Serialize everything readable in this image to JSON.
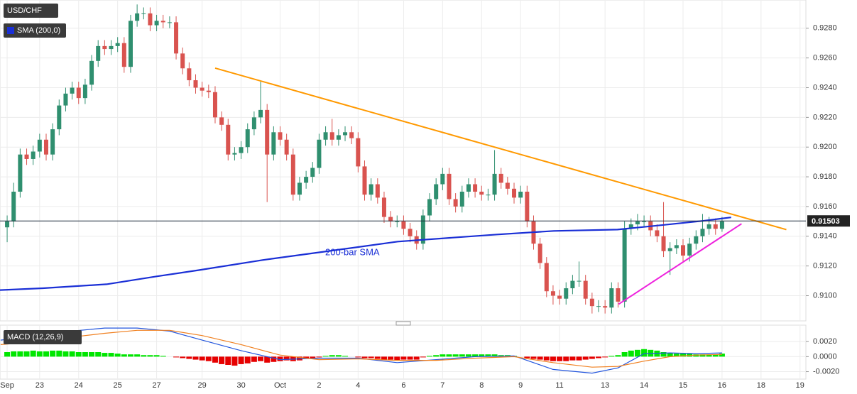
{
  "chart_data": [
    {
      "type": "candlestick",
      "title": "USD/CHF",
      "xlim": [
        -1.1,
        122.9
      ],
      "ylim": [
        0.9084,
        0.9299
      ],
      "xticks": [
        {
          "value": 0,
          "label": "Sep"
        },
        {
          "value": 5,
          "label": "23"
        },
        {
          "value": 11,
          "label": "24"
        },
        {
          "value": 17,
          "label": "25"
        },
        {
          "value": 23,
          "label": "27"
        },
        {
          "value": 30,
          "label": "29"
        },
        {
          "value": 36,
          "label": "30"
        },
        {
          "value": 42,
          "label": "Oct"
        },
        {
          "value": 48,
          "label": "2"
        },
        {
          "value": 54,
          "label": "4"
        },
        {
          "value": 61,
          "label": "6"
        },
        {
          "value": 67,
          "label": "7"
        },
        {
          "value": 73,
          "label": "8"
        },
        {
          "value": 79,
          "label": "9"
        },
        {
          "value": 85,
          "label": "11"
        },
        {
          "value": 92,
          "label": "13"
        },
        {
          "value": 98,
          "label": "14"
        },
        {
          "value": 104,
          "label": "15"
        },
        {
          "value": 110,
          "label": "16"
        },
        {
          "value": 116,
          "label": "18"
        },
        {
          "value": 122,
          "label": "19"
        }
      ],
      "yticks": [
        {
          "value": 0.91,
          "label": "0.9100"
        },
        {
          "value": 0.912,
          "label": "0.9120"
        },
        {
          "value": 0.914,
          "label": "0.9140"
        },
        {
          "value": 0.916,
          "label": "0.9160"
        },
        {
          "value": 0.918,
          "label": "0.9180"
        },
        {
          "value": 0.92,
          "label": "0.9200"
        },
        {
          "value": 0.922,
          "label": "0.9220"
        },
        {
          "value": 0.924,
          "label": "0.9240"
        },
        {
          "value": 0.926,
          "label": "0.9260"
        },
        {
          "value": 0.928,
          "label": "0.9280"
        }
      ],
      "grid": true,
      "up_color": "#2f8f6f",
      "down_color": "#d9534f",
      "x": [
        0,
        1,
        2,
        3,
        4,
        5,
        6,
        7,
        8,
        9,
        10,
        11,
        12,
        13,
        14,
        15,
        16,
        17,
        18,
        19,
        20,
        21,
        22,
        23,
        24,
        25,
        26,
        27,
        28,
        29,
        30,
        31,
        32,
        33,
        34,
        35,
        36,
        37,
        38,
        39,
        40,
        41,
        42,
        43,
        44,
        45,
        46,
        47,
        48,
        49,
        50,
        51,
        52,
        53,
        54,
        55,
        56,
        57,
        58,
        59,
        60,
        61,
        62,
        63,
        64,
        65,
        66,
        67,
        68,
        69,
        70,
        71,
        72,
        73,
        74,
        75,
        76,
        77,
        78,
        79,
        80,
        81,
        82,
        83,
        84,
        85,
        86,
        87,
        88,
        89,
        90,
        91,
        92,
        93,
        94,
        95,
        96,
        97,
        98,
        99,
        100,
        101,
        102,
        103,
        104,
        105,
        106,
        107,
        108,
        109,
        110
      ],
      "open": [
        0.9146,
        0.915,
        0.917,
        0.9195,
        0.9192,
        0.9197,
        0.9205,
        0.9195,
        0.9212,
        0.9228,
        0.9236,
        0.924,
        0.9233,
        0.9242,
        0.9258,
        0.9268,
        0.9266,
        0.9268,
        0.927,
        0.9254,
        0.9285,
        0.929,
        0.929,
        0.9282,
        0.9285,
        0.9284,
        0.9284,
        0.9263,
        0.9253,
        0.9245,
        0.924,
        0.9238,
        0.9237,
        0.922,
        0.9215,
        0.9195,
        0.9196,
        0.92,
        0.9212,
        0.922,
        0.9225,
        0.9195,
        0.921,
        0.9205,
        0.9195,
        0.9168,
        0.9176,
        0.918,
        0.9186,
        0.9205,
        0.921,
        0.9205,
        0.9208,
        0.921,
        0.9206,
        0.9187,
        0.9168,
        0.9175,
        0.9166,
        0.9153,
        0.915,
        0.915,
        0.9145,
        0.914,
        0.9135,
        0.9154,
        0.9165,
        0.9175,
        0.9182,
        0.9165,
        0.916,
        0.917,
        0.9175,
        0.917,
        0.9168,
        0.9168,
        0.9182,
        0.9176,
        0.9172,
        0.9166,
        0.917,
        0.915,
        0.9135,
        0.9122,
        0.9103,
        0.91,
        0.9098,
        0.9105,
        0.911,
        0.911,
        0.9098,
        0.9093,
        0.9093,
        0.9092,
        0.9105,
        0.9096,
        0.9145,
        0.9148,
        0.915,
        0.915,
        0.9144,
        0.914,
        0.913,
        0.9132,
        0.9134,
        0.9127,
        0.9135,
        0.914,
        0.9145,
        0.9148,
        0.9145
      ],
      "high": [
        0.9154,
        0.9176,
        0.9199,
        0.9199,
        0.9201,
        0.9209,
        0.9209,
        0.9216,
        0.9232,
        0.924,
        0.9244,
        0.9244,
        0.9246,
        0.9262,
        0.9272,
        0.9272,
        0.9272,
        0.9274,
        0.9274,
        0.9289,
        0.9296,
        0.9294,
        0.9294,
        0.9289,
        0.9289,
        0.9288,
        0.9288,
        0.9267,
        0.9257,
        0.9249,
        0.9244,
        0.9242,
        0.9241,
        0.9224,
        0.9219,
        0.92,
        0.9204,
        0.9216,
        0.9224,
        0.9244,
        0.9229,
        0.9214,
        0.9214,
        0.9209,
        0.9199,
        0.918,
        0.9184,
        0.919,
        0.9209,
        0.9214,
        0.9219,
        0.9212,
        0.9214,
        0.9214,
        0.921,
        0.9191,
        0.9179,
        0.9179,
        0.917,
        0.9157,
        0.9154,
        0.9154,
        0.9149,
        0.9144,
        0.9158,
        0.9169,
        0.9179,
        0.9186,
        0.9186,
        0.9169,
        0.9174,
        0.9179,
        0.9179,
        0.9174,
        0.9172,
        0.9198,
        0.9186,
        0.918,
        0.9176,
        0.9174,
        0.9174,
        0.9154,
        0.9139,
        0.9126,
        0.9107,
        0.9104,
        0.9109,
        0.9114,
        0.9123,
        0.9114,
        0.9102,
        0.9097,
        0.9097,
        0.9109,
        0.9109,
        0.915,
        0.9152,
        0.9155,
        0.9154,
        0.9154,
        0.9148,
        0.9163,
        0.9136,
        0.9138,
        0.9138,
        0.9139,
        0.9144,
        0.9155,
        0.9153,
        0.9152,
        0.9153
      ],
      "low": [
        0.9136,
        0.9146,
        0.9166,
        0.9188,
        0.9188,
        0.9193,
        0.9191,
        0.9191,
        0.9208,
        0.9224,
        0.9232,
        0.9229,
        0.9229,
        0.9238,
        0.9254,
        0.9262,
        0.9262,
        0.9264,
        0.925,
        0.925,
        0.9281,
        0.9286,
        0.9278,
        0.9278,
        0.928,
        0.928,
        0.9259,
        0.9249,
        0.9241,
        0.9236,
        0.9234,
        0.9233,
        0.9216,
        0.9211,
        0.9191,
        0.9191,
        0.9192,
        0.9196,
        0.9208,
        0.9216,
        0.9163,
        0.9191,
        0.9201,
        0.9191,
        0.9164,
        0.9164,
        0.9172,
        0.9176,
        0.9182,
        0.9201,
        0.9201,
        0.9201,
        0.9204,
        0.9202,
        0.9183,
        0.9164,
        0.9164,
        0.9162,
        0.9149,
        0.9146,
        0.9146,
        0.9141,
        0.9136,
        0.9131,
        0.9131,
        0.915,
        0.9161,
        0.9171,
        0.9161,
        0.9156,
        0.9156,
        0.9166,
        0.9166,
        0.9164,
        0.9164,
        0.9164,
        0.9172,
        0.9168,
        0.9162,
        0.9162,
        0.9146,
        0.9131,
        0.9118,
        0.9099,
        0.9094,
        0.9094,
        0.9094,
        0.9101,
        0.9106,
        0.9094,
        0.9088,
        0.9089,
        0.9088,
        0.9088,
        0.9092,
        0.9092,
        0.9141,
        0.9144,
        0.9146,
        0.914,
        0.9136,
        0.9126,
        0.9114,
        0.9128,
        0.9123,
        0.9123,
        0.9131,
        0.9136,
        0.9141,
        0.9141,
        0.9143
      ],
      "close": [
        0.915,
        0.917,
        0.9195,
        0.9192,
        0.9197,
        0.9205,
        0.9195,
        0.9212,
        0.9228,
        0.9236,
        0.924,
        0.9233,
        0.9242,
        0.9258,
        0.9268,
        0.9266,
        0.9268,
        0.927,
        0.9254,
        0.9285,
        0.929,
        0.929,
        0.9282,
        0.9285,
        0.9284,
        0.9284,
        0.9263,
        0.9253,
        0.9245,
        0.924,
        0.9238,
        0.9237,
        0.922,
        0.9215,
        0.9195,
        0.9196,
        0.92,
        0.9212,
        0.922,
        0.9225,
        0.9195,
        0.921,
        0.9205,
        0.9195,
        0.9168,
        0.9176,
        0.918,
        0.9186,
        0.9205,
        0.921,
        0.9205,
        0.9208,
        0.921,
        0.9206,
        0.9187,
        0.9168,
        0.9175,
        0.9166,
        0.9153,
        0.915,
        0.915,
        0.9145,
        0.914,
        0.9135,
        0.9154,
        0.9165,
        0.9175,
        0.9182,
        0.9165,
        0.916,
        0.917,
        0.9175,
        0.917,
        0.9168,
        0.9168,
        0.9182,
        0.9176,
        0.9172,
        0.9166,
        0.917,
        0.915,
        0.9135,
        0.9122,
        0.9103,
        0.91,
        0.9098,
        0.9105,
        0.911,
        0.911,
        0.9098,
        0.9093,
        0.9093,
        0.9092,
        0.9105,
        0.9096,
        0.9145,
        0.9148,
        0.915,
        0.915,
        0.9144,
        0.914,
        0.913,
        0.9132,
        0.9134,
        0.9127,
        0.9135,
        0.914,
        0.9145,
        0.9148,
        0.9145,
        0.915
      ],
      "series": [
        {
          "name": "SMA (200,0)",
          "color": "#1a2fd6",
          "x": [
            -1.1,
            5.5,
            15.3,
            23,
            29.5,
            39.3,
            48.1,
            60.1,
            75.4,
            84.1,
            93.9,
            100.5,
            107,
            111.4
          ],
          "values": [
            0.91038,
            0.9105,
            0.91077,
            0.9113,
            0.91172,
            0.9124,
            0.91292,
            0.91364,
            0.91412,
            0.91436,
            0.91445,
            0.91474,
            0.91503,
            0.91527
          ]
        }
      ],
      "lines": [
        {
          "color": "#ff9900",
          "x": [
            32,
            119.9
          ],
          "values": [
            0.92532,
            0.91445
          ]
        },
        {
          "color": "#ee22dd",
          "x": [
            94.1,
            113
          ],
          "values": [
            0.90943,
            0.91484
          ]
        }
      ],
      "annotation": "200-bar SMA",
      "current_price": 0.91503
    },
    {
      "type": "macd",
      "title": "MACD (12,26,9)",
      "ylim": [
        -0.0028,
        0.004
      ],
      "yticks": [
        {
          "value": -0.002,
          "label": "-0.0020"
        },
        {
          "value": 0,
          "label": "0.0000"
        },
        {
          "value": 0.002,
          "label": "0.0020"
        }
      ],
      "histogram": {
        "up_color": "#00e600",
        "down_color": "#e60000",
        "x": [
          0,
          1,
          2,
          3,
          4,
          5,
          6,
          7,
          8,
          9,
          10,
          11,
          12,
          13,
          14,
          15,
          16,
          17,
          18,
          19,
          20,
          21,
          22,
          23,
          24,
          25,
          26,
          27,
          28,
          29,
          30,
          31,
          32,
          33,
          34,
          35,
          36,
          37,
          38,
          39,
          40,
          41,
          42,
          43,
          44,
          45,
          46,
          47,
          48,
          49,
          50,
          51,
          52,
          53,
          54,
          55,
          56,
          57,
          58,
          59,
          60,
          61,
          62,
          63,
          64,
          65,
          66,
          67,
          68,
          69,
          70,
          71,
          72,
          73,
          74,
          75,
          76,
          77,
          78,
          79,
          80,
          81,
          82,
          83,
          84,
          85,
          86,
          87,
          88,
          89,
          90,
          91,
          92,
          93,
          94,
          95,
          96,
          97,
          98,
          99,
          100,
          101,
          102,
          103,
          104,
          105,
          106,
          107,
          108,
          109,
          110
        ],
        "values": [
          0.0006,
          0.0007,
          0.0007,
          0.0007,
          0.0008,
          0.0007,
          0.0007,
          0.0008,
          0.0008,
          0.0007,
          0.0007,
          0.0006,
          0.0006,
          0.0006,
          0.0006,
          0.0005,
          0.0005,
          0.0004,
          0.0003,
          0.0003,
          0.0003,
          0.0002,
          0.0002,
          0.0002,
          0.0001,
          0.0,
          -0.0001,
          -0.0002,
          -0.0003,
          -0.0004,
          -0.0005,
          -0.0006,
          -0.0008,
          -0.001,
          -0.0011,
          -0.0012,
          -0.001,
          -0.0009,
          -0.0007,
          -0.0006,
          -0.0008,
          -0.0007,
          -0.0006,
          -0.0005,
          -0.0006,
          -0.0005,
          -0.0003,
          -0.0002,
          -0.0001,
          0.0001,
          0.0002,
          0.0002,
          0.0001,
          0.0,
          -0.0001,
          -0.0002,
          -0.0002,
          -0.0003,
          -0.0004,
          -0.0004,
          -0.0005,
          -0.0004,
          -0.0004,
          -0.0004,
          -0.0001,
          0.0001,
          0.0002,
          0.0003,
          0.0003,
          0.0003,
          0.0003,
          0.0003,
          0.0003,
          0.0003,
          0.0003,
          0.0003,
          0.0002,
          0.0002,
          0.0001,
          0.0,
          -0.0002,
          -0.0003,
          -0.0004,
          -0.0005,
          -0.0006,
          -0.0006,
          -0.0006,
          -0.0005,
          -0.0005,
          -0.0004,
          -0.0003,
          -0.0002,
          -0.0001,
          0.0001,
          0.0002,
          0.0006,
          0.0008,
          0.0009,
          0.001,
          0.0009,
          0.0008,
          0.0006,
          0.0005,
          0.0004,
          0.0004,
          0.0004,
          0.0003,
          0.0003,
          0.0003,
          0.0003,
          0.0004
        ]
      },
      "lines": [
        {
          "color": "#2255dd",
          "x": [
            -1,
            5,
            10,
            15,
            20,
            25,
            30,
            36,
            42,
            48,
            54,
            60,
            66,
            72,
            78,
            84,
            90,
            94,
            98,
            102,
            106,
            110
          ],
          "values": [
            0.0022,
            0.0028,
            0.0034,
            0.0038,
            0.0038,
            0.0034,
            0.0022,
            0.0008,
            -0.0004,
            -0.0002,
            -0.0002,
            -0.0008,
            -0.0004,
            0.0,
            0.0001,
            -0.0017,
            -0.0022,
            -0.0015,
            0.0004,
            0.0005,
            0.0004,
            0.0005
          ]
        },
        {
          "color": "#f08020",
          "x": [
            -1,
            5,
            10,
            15,
            20,
            25,
            30,
            36,
            42,
            48,
            54,
            60,
            66,
            72,
            78,
            84,
            90,
            94,
            98,
            102,
            106,
            110
          ],
          "values": [
            0.0016,
            0.002,
            0.0026,
            0.0031,
            0.0035,
            0.0035,
            0.0028,
            0.0016,
            0.0002,
            -0.0004,
            -0.0003,
            -0.0005,
            -0.0005,
            -0.0002,
            0.0,
            -0.0008,
            -0.0014,
            -0.0013,
            -0.0006,
            0.0,
            0.0002,
            0.0003
          ]
        }
      ]
    }
  ]
}
